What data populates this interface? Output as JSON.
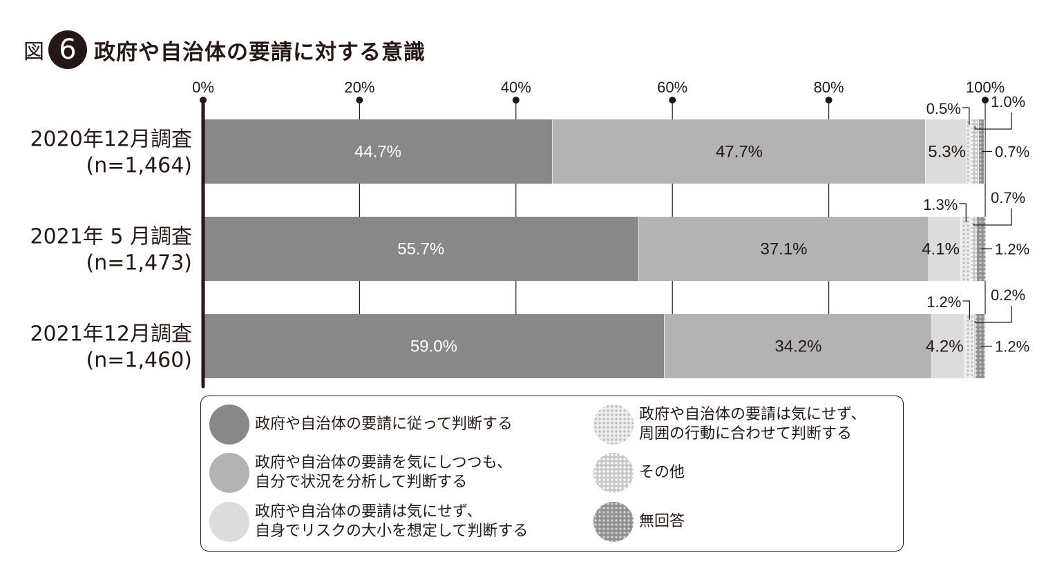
{
  "figure": {
    "prefix": "図",
    "number": "6",
    "title": "政府や自治体の要請に対する意識"
  },
  "chart_data": {
    "type": "bar",
    "orientation": "horizontal",
    "stacked": true,
    "xlim": [
      0,
      100
    ],
    "x_ticks": [
      "0%",
      "20%",
      "40%",
      "60%",
      "80%",
      "100%"
    ],
    "categories": [
      {
        "line1": "2020年12月調査",
        "line2": "(n=1,464)"
      },
      {
        "line1": "2021年 5 月調査",
        "line2": "(n=1,473)"
      },
      {
        "line1": "2021年12月調査",
        "line2": "(n=1,460)"
      }
    ],
    "series": [
      {
        "name": "政府や自治体の要請に従って判断する",
        "values": [
          44.7,
          55.7,
          59.0
        ],
        "labels": [
          "44.7%",
          "55.7%",
          "59.0%"
        ]
      },
      {
        "name": "政府や自治体の要請を気にしつつも、自分で状況を分析して判断する",
        "values": [
          47.7,
          37.1,
          34.2
        ],
        "labels": [
          "47.7%",
          "37.1%",
          "34.2%"
        ]
      },
      {
        "name": "政府や自治体の要請は気にせず、自身でリスクの大小を想定して判断する",
        "values": [
          5.3,
          4.1,
          4.2
        ],
        "labels": [
          "5.3%",
          "4.1%",
          "4.2%"
        ]
      },
      {
        "name": "政府や自治体の要請は気にせず、周囲の行動に合わせて判断する",
        "values": [
          0.5,
          1.3,
          1.2
        ],
        "labels": [
          "0.5%",
          "1.3%",
          "1.2%"
        ]
      },
      {
        "name": "その他",
        "values": [
          1.0,
          0.7,
          0.2
        ],
        "labels": [
          "1.0%",
          "0.7%",
          "0.2%"
        ]
      },
      {
        "name": "無回答",
        "values": [
          0.7,
          1.2,
          1.2
        ],
        "labels": [
          "0.7%",
          "1.2%",
          "1.2%"
        ]
      }
    ],
    "colors": {
      "follow": "#888888",
      "self": "#b3b3b3",
      "risk": "#dcdcdc",
      "around": "#e8e8e8",
      "other": "#c6c6c6",
      "na": "#8f8f8f",
      "ink": "#231815"
    }
  },
  "legend": [
    {
      "key": "follow",
      "text": "政府や自治体の要請に従って判断する"
    },
    {
      "key": "self",
      "text": "政府や自治体の要請を気にしつつも、\n自分で状況を分析して判断する"
    },
    {
      "key": "risk",
      "text": "政府や自治体の要請は気にせず、\n自身でリスクの大小を想定して判断する"
    },
    {
      "key": "around",
      "text": "政府や自治体の要請は気にせず、\n周囲の行動に合わせて判断する"
    },
    {
      "key": "other",
      "text": "その他"
    },
    {
      "key": "na",
      "text": "無回答"
    }
  ]
}
